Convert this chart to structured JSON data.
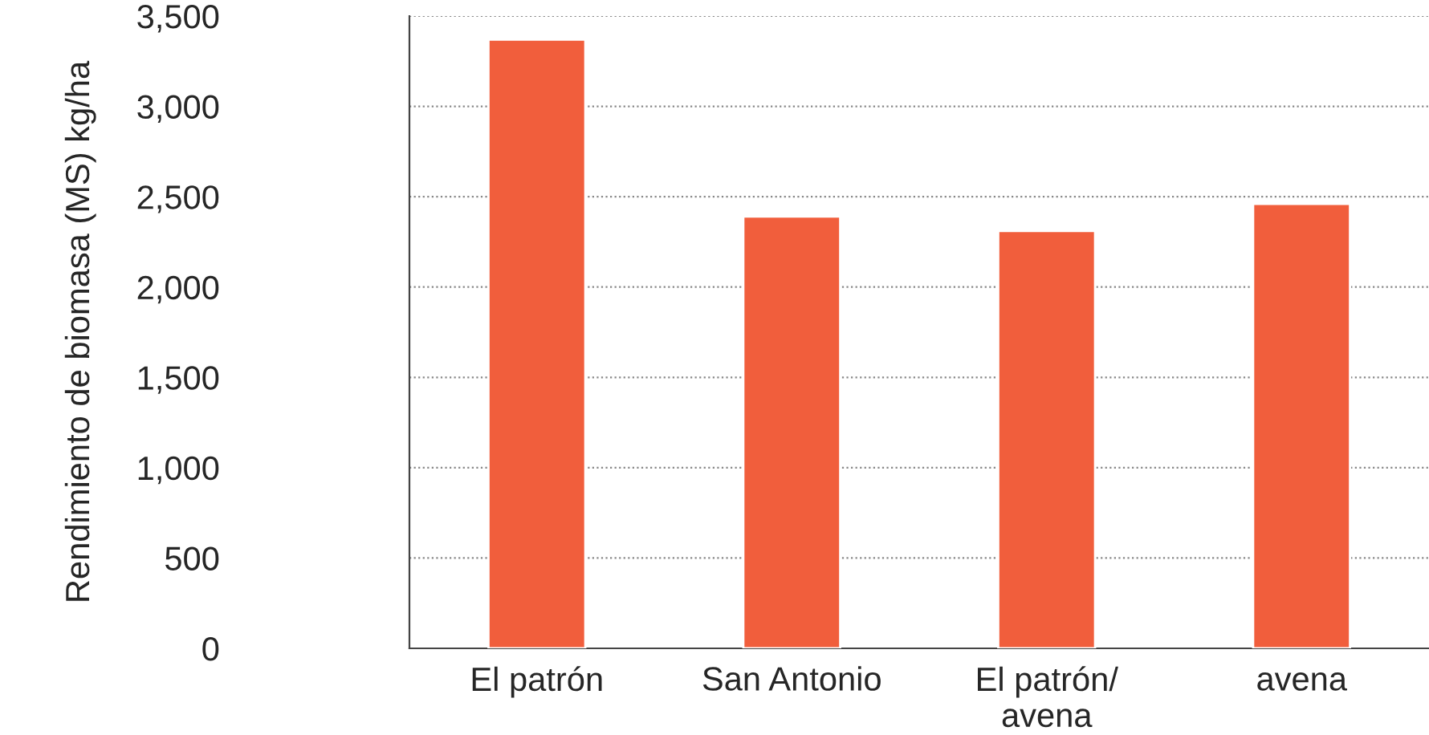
{
  "chart_data": {
    "type": "bar",
    "ylabel": "Rendimiento de biomasa (MS) kg/ha",
    "categories": [
      "El patrón",
      "San Antonio",
      "El patrón/\navena",
      "avena"
    ],
    "values": [
      3370,
      2390,
      2310,
      2460
    ],
    "color": "#f15e3c",
    "ylim": [
      0,
      3500
    ],
    "yticks": [
      {
        "value": 0,
        "label": "0"
      },
      {
        "value": 500,
        "label": "500"
      },
      {
        "value": 1000,
        "label": "1,000"
      },
      {
        "value": 1500,
        "label": "1,500"
      },
      {
        "value": 2000,
        "label": "2,000"
      },
      {
        "value": 2500,
        "label": "2,500"
      },
      {
        "value": 3000,
        "label": "3,000"
      },
      {
        "value": 3500,
        "label": "3,500"
      }
    ],
    "grid": "y"
  }
}
